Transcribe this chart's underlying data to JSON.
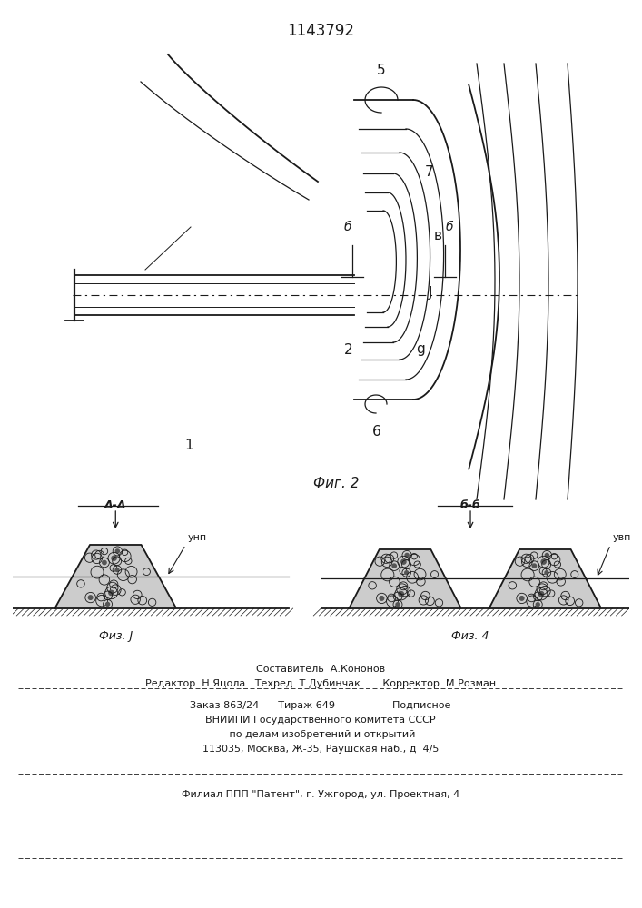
{
  "patent_number": "1143792",
  "fig2_label": "Фиг. 2",
  "fig3_label": "Физ. J",
  "fig4_label": "Физ. 4",
  "label_AA": "A-A",
  "label_BB": "б-б",
  "label_unp": "унп",
  "label_uvp": "увп",
  "footer_line1": "Составитель  А.Кононов",
  "footer_line2": "Редактор  Н.Яцола   Техред  Т.Дубинчак       Корректор  М.Розман",
  "footer_line3": "Заказ 863/24      Тираж 649                  Подписное",
  "footer_line4": "ВНИИПИ Государственного комитета СССР",
  "footer_line5": " по делам изобретений и открытий",
  "footer_line6": "113035, Москва, Ж-35, Раушская наб., д  4/5",
  "footer_line7": "Филиал ППП \"Патент\", г. Ужгород, ул. Проектная, 4",
  "bg_color": "#ffffff",
  "line_color": "#1a1a1a",
  "text_color": "#1a1a1a"
}
